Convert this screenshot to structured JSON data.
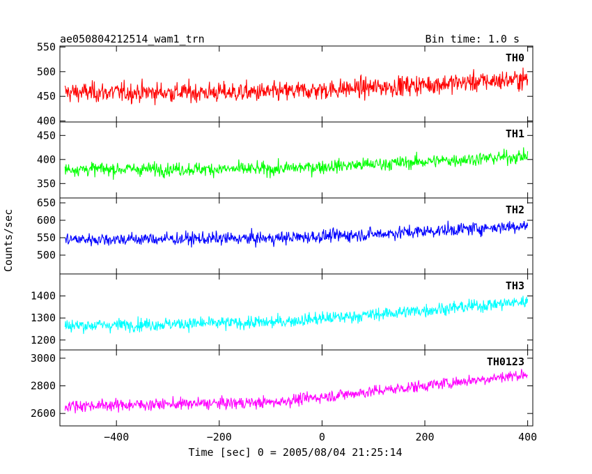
{
  "header": {
    "title": "ae050804212514_wam1_trn",
    "bin_time": "Bin time: 1.0 s"
  },
  "axes": {
    "ylabel": "Counts/sec",
    "xlabel": "Time [sec] 0 = 2005/08/04 21:25:14"
  },
  "chart_data": {
    "type": "line",
    "xlim": [
      -510,
      410
    ],
    "x_ticks": [
      -400,
      -200,
      0,
      200,
      400
    ],
    "x_tick_labels": [
      "−400",
      "−200",
      "0",
      "200",
      "400"
    ],
    "x_start": -500,
    "x_end": 400,
    "x_step": 1,
    "grid": false,
    "panels": [
      {
        "name": "TH0",
        "color": "#ff0000",
        "ylim": [
          398,
          552
        ],
        "y_ticks": [
          400,
          450,
          500,
          550
        ],
        "trend": [
          [
            -500,
            458
          ],
          [
            -100,
            458
          ],
          [
            100,
            468
          ],
          [
            400,
            485
          ]
        ],
        "noise": 26
      },
      {
        "name": "TH1",
        "color": "#00ff00",
        "ylim": [
          320,
          478
        ],
        "y_ticks": [
          350,
          400,
          450
        ],
        "trend": [
          [
            -500,
            380
          ],
          [
            -100,
            380
          ],
          [
            100,
            390
          ],
          [
            400,
            407
          ]
        ],
        "noise": 18
      },
      {
        "name": "TH2",
        "color": "#0000ff",
        "ylim": [
          446,
          664
        ],
        "y_ticks": [
          500,
          550,
          600,
          650
        ],
        "trend": [
          [
            -500,
            545
          ],
          [
            -100,
            548
          ],
          [
            100,
            560
          ],
          [
            400,
            585
          ]
        ],
        "noise": 24
      },
      {
        "name": "TH3",
        "color": "#00ffff",
        "ylim": [
          1155,
          1500
        ],
        "y_ticks": [
          1200,
          1300,
          1400
        ],
        "trend": [
          [
            -500,
            1265
          ],
          [
            -100,
            1280
          ],
          [
            100,
            1315
          ],
          [
            400,
            1375
          ]
        ],
        "noise": 38
      },
      {
        "name": "TH0123",
        "color": "#ff00ff",
        "ylim": [
          2510,
          3060
        ],
        "y_ticks": [
          2600,
          2800,
          3000
        ],
        "trend": [
          [
            -500,
            2655
          ],
          [
            -100,
            2680
          ],
          [
            100,
            2760
          ],
          [
            400,
            2885
          ]
        ],
        "noise": 55
      }
    ]
  }
}
